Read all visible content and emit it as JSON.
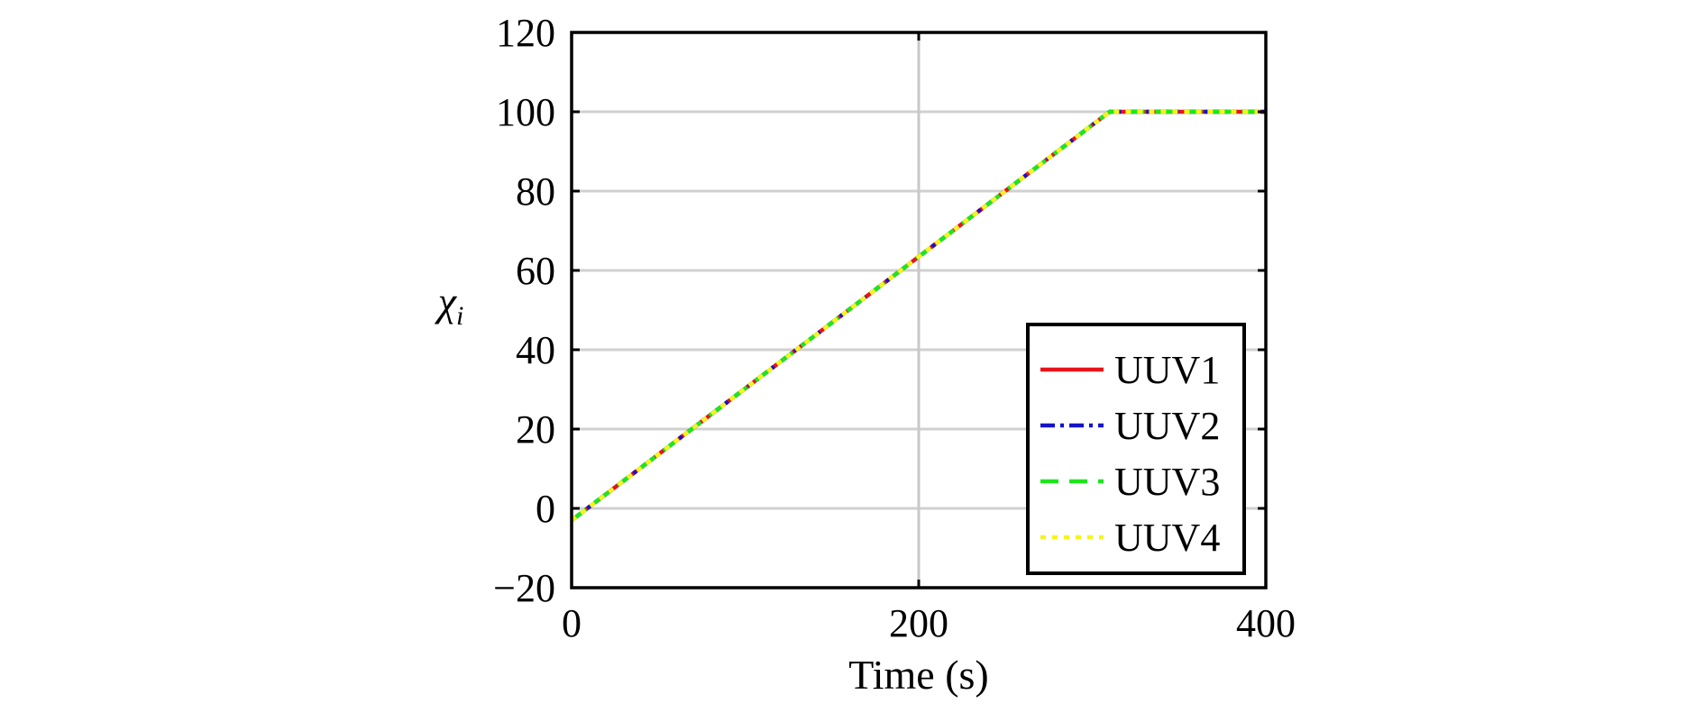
{
  "chart_data": {
    "type": "line",
    "title": "",
    "xlabel": "Time (s)",
    "ylabel_symbol": "χ",
    "ylabel_subscript": "i",
    "xlim": [
      0,
      400
    ],
    "ylim": [
      -20,
      120
    ],
    "xticks": [
      0,
      200,
      400
    ],
    "xtick_labels": [
      "0",
      "200",
      "400"
    ],
    "yticks": [
      -20,
      0,
      20,
      40,
      60,
      80,
      100,
      120
    ],
    "ytick_labels": [
      "−20",
      "0",
      "20",
      "40",
      "60",
      "80",
      "100",
      "120"
    ],
    "grid": true,
    "legend_position": "bottom-right",
    "series": [
      {
        "name": "UUV1",
        "color": "#e8141a",
        "dash": "solid",
        "x": [
          0,
          310,
          400
        ],
        "y": [
          -3,
          100,
          100
        ]
      },
      {
        "name": "UUV2",
        "color": "#1414c8",
        "dash": "dashdot",
        "x": [
          0,
          310,
          400
        ],
        "y": [
          -3,
          100,
          100
        ]
      },
      {
        "name": "UUV3",
        "color": "#1ee61e",
        "dash": "dashed",
        "x": [
          0,
          310,
          400
        ],
        "y": [
          -3,
          100,
          100
        ]
      },
      {
        "name": "UUV4",
        "color": "#f5f51e",
        "dash": "dotted",
        "x": [
          0,
          310,
          400
        ],
        "y": [
          -3,
          100,
          100
        ]
      }
    ]
  }
}
